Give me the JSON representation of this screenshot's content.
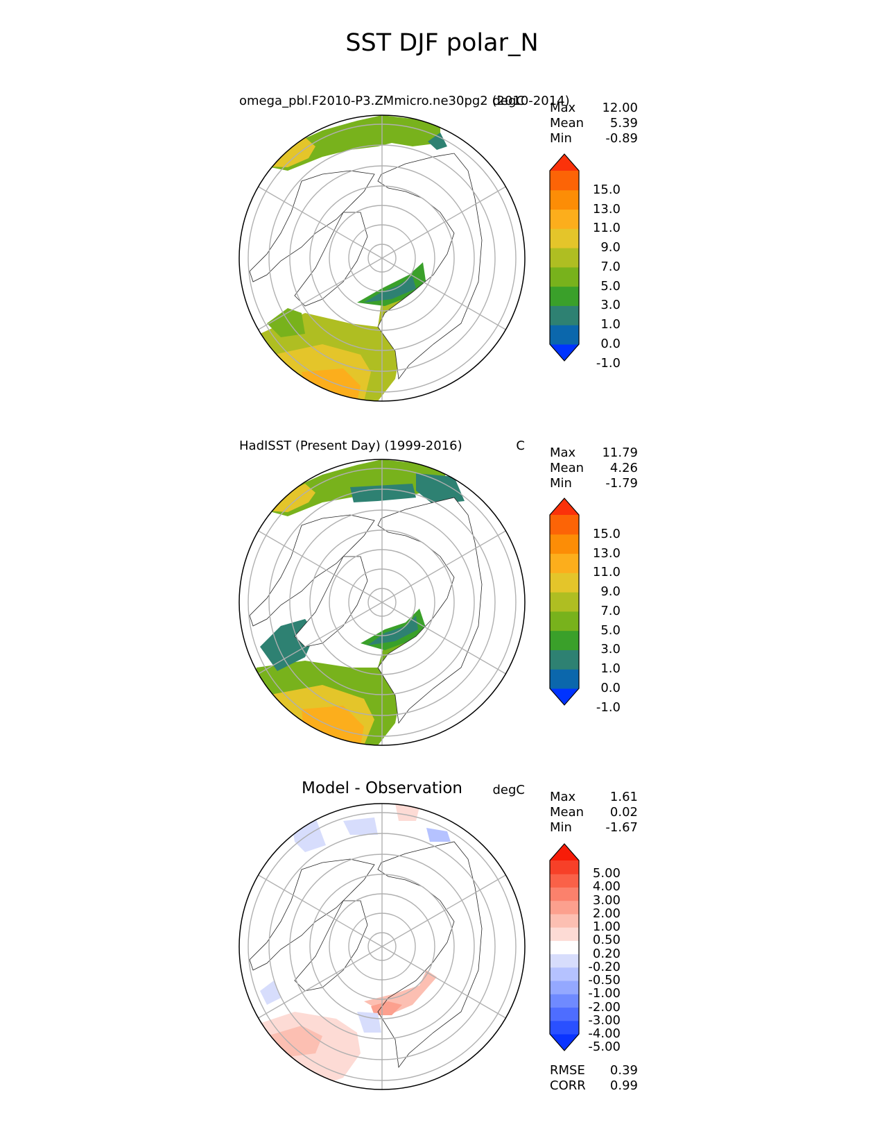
{
  "title": "SST DJF polar_N",
  "panels": [
    {
      "id": "test",
      "left_title": "omega_pbl.F2010-P3.ZMmicro.ne30pg2 (2010-2014)",
      "units": "degC",
      "stats": [
        {
          "label": "Max",
          "value": "12.00"
        },
        {
          "label": "Mean",
          "value": "5.39"
        },
        {
          "label": "Min",
          "value": "-0.89"
        }
      ],
      "colorbar": {
        "labels": [
          "15.0",
          "13.0",
          "11.0",
          "9.0",
          "7.0",
          "5.0",
          "3.0",
          "1.0",
          "0.0",
          "-1.0"
        ],
        "colors": [
          "#0033ff",
          "#0b67ac",
          "#2e8172",
          "#3aa02a",
          "#78b21c",
          "#afbe22",
          "#e4c52a",
          "#fcae1c",
          "#fc8d06",
          "#fc6406",
          "#fb320a"
        ]
      }
    },
    {
      "id": "ref",
      "left_title": "HadISST (Present Day) (1999-2016)",
      "units": "C",
      "stats": [
        {
          "label": "Max",
          "value": "11.79"
        },
        {
          "label": "Mean",
          "value": "4.26"
        },
        {
          "label": "Min",
          "value": "-1.79"
        }
      ],
      "colorbar": {
        "labels": [
          "15.0",
          "13.0",
          "11.0",
          "9.0",
          "7.0",
          "5.0",
          "3.0",
          "1.0",
          "0.0",
          "-1.0"
        ],
        "colors": [
          "#0033ff",
          "#0b67ac",
          "#2e8172",
          "#3aa02a",
          "#78b21c",
          "#afbe22",
          "#e4c52a",
          "#fcae1c",
          "#fc8d06",
          "#fc6406",
          "#fb320a"
        ]
      }
    },
    {
      "id": "diff",
      "center_title": "Model - Observation",
      "units": "degC",
      "stats": [
        {
          "label": "Max",
          "value": "1.61"
        },
        {
          "label": "Mean",
          "value": "0.02"
        },
        {
          "label": "Min",
          "value": "-1.67"
        }
      ],
      "colorbar": {
        "labels": [
          "5.00",
          "4.00",
          "3.00",
          "2.00",
          "1.00",
          "0.50",
          "0.20",
          "-0.20",
          "-0.50",
          "-1.00",
          "-2.00",
          "-3.00",
          "-4.00",
          "-5.00"
        ],
        "colors": [
          "#0a33ff",
          "#2a50ff",
          "#4e6dff",
          "#6f8aff",
          "#94a8ff",
          "#b5c2ff",
          "#d7ddfc",
          "#ffffff",
          "#fddbd5",
          "#fcbfb2",
          "#fca08e",
          "#fb816c",
          "#fa6148",
          "#f74028",
          "#f71c08"
        ]
      },
      "metrics": [
        {
          "label": "RMSE",
          "value": "0.39"
        },
        {
          "label": "CORR",
          "value": "0.99"
        }
      ]
    }
  ],
  "chart_data": [
    {
      "type": "heatmap",
      "projection": "north polar stereographic",
      "title": "omega_pbl.F2010-P3.ZMmicro.ne30pg2 (2010-2014)",
      "variable": "SST",
      "season": "DJF",
      "units": "degC",
      "stats": {
        "max": 12.0,
        "mean": 5.39,
        "min": -0.89
      },
      "levels": [
        -1.0,
        0.0,
        1.0,
        3.0,
        5.0,
        7.0,
        9.0,
        11.0,
        13.0,
        15.0
      ],
      "grid": true
    },
    {
      "type": "heatmap",
      "projection": "north polar stereographic",
      "title": "HadISST (Present Day) (1999-2016)",
      "variable": "SST",
      "season": "DJF",
      "units": "C",
      "stats": {
        "max": 11.79,
        "mean": 4.26,
        "min": -1.79
      },
      "levels": [
        -1.0,
        0.0,
        1.0,
        3.0,
        5.0,
        7.0,
        9.0,
        11.0,
        13.0,
        15.0
      ],
      "grid": true
    },
    {
      "type": "heatmap",
      "projection": "north polar stereographic",
      "title": "Model - Observation",
      "units": "degC",
      "stats": {
        "max": 1.61,
        "mean": 0.02,
        "min": -1.67
      },
      "levels": [
        -5.0,
        -4.0,
        -3.0,
        -2.0,
        -1.0,
        -0.5,
        -0.2,
        0.2,
        0.5,
        1.0,
        2.0,
        3.0,
        4.0,
        5.0
      ],
      "metrics": {
        "rmse": 0.39,
        "corr": 0.99
      },
      "grid": true
    }
  ]
}
